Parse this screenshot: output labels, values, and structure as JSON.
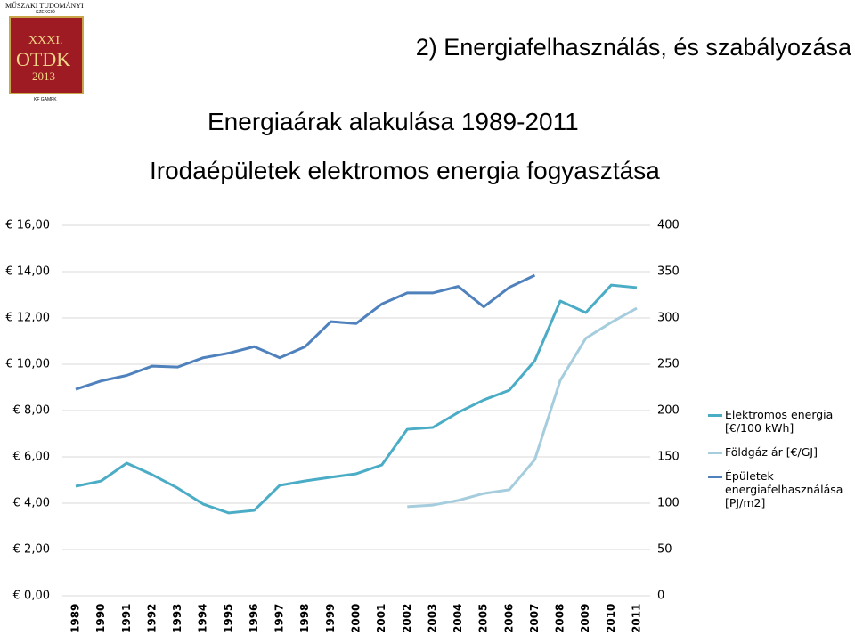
{
  "header": {
    "logo": {
      "top": "MŰSZAKI TUDOMÁNYI",
      "sub": "SZEKCIÓ",
      "number": "XXXI.",
      "name": "OTDK",
      "year": "2013",
      "bottom": "KF GAMFK"
    },
    "title": "2) Energiafelhasználás, és szabályozása",
    "subtitle": "Energiaárak alakulása 1989-2011",
    "subtitle2": "Irodaépületek elektromos energia fogyasztása"
  },
  "chart_data": {
    "type": "line",
    "categories": [
      "1989",
      "1990",
      "1991",
      "1992",
      "1993",
      "1994",
      "1995",
      "1996",
      "1997",
      "1998",
      "1999",
      "2000",
      "2001",
      "2002",
      "2003",
      "2004",
      "2005",
      "2006",
      "2007",
      "2008",
      "2009",
      "2010",
      "2011"
    ],
    "series": [
      {
        "name": "Elektromos energia [€/100 kWh]",
        "color": "#4bacc6",
        "values": [
          4.73,
          4.96,
          5.73,
          5.23,
          4.65,
          3.96,
          3.58,
          3.69,
          4.77,
          4.96,
          5.12,
          5.27,
          5.65,
          7.19,
          7.27,
          7.92,
          8.46,
          8.88,
          10.15,
          12.73,
          12.23,
          13.42,
          13.31
        ]
      },
      {
        "name": "Földgáz ár [€/GJ]",
        "color": "#a5cddd",
        "values": [
          null,
          null,
          null,
          null,
          null,
          null,
          null,
          null,
          null,
          null,
          null,
          null,
          null,
          3.85,
          3.92,
          4.12,
          4.42,
          4.58,
          5.88,
          9.31,
          11.12,
          11.81,
          12.42
        ]
      },
      {
        "name": "Épületek energiafelhasználása [PJ/m2]",
        "color": "#4f81bd",
        "axis": "y2",
        "values": [
          223,
          232,
          238,
          248,
          247,
          257,
          262,
          269,
          257,
          269,
          296,
          294,
          315,
          327,
          327,
          334,
          312,
          333,
          346,
          null,
          null,
          null,
          null
        ]
      }
    ],
    "ylim": [
      0,
      16
    ],
    "yticks": [
      {
        "value": 0,
        "label": "€ 0,00"
      },
      {
        "value": 2,
        "label": "€ 2,00"
      },
      {
        "value": 4,
        "label": "€ 4,00"
      },
      {
        "value": 6,
        "label": "€ 6,00"
      },
      {
        "value": 8,
        "label": "€ 8,00"
      },
      {
        "value": 10,
        "label": "€ 10,00"
      },
      {
        "value": 12,
        "label": "€ 12,00"
      },
      {
        "value": 14,
        "label": "€ 14,00"
      },
      {
        "value": 16,
        "label": "€ 16,00"
      }
    ],
    "y2lim": [
      0,
      400
    ],
    "y2ticks": [
      0,
      50,
      100,
      150,
      200,
      250,
      300,
      350,
      400
    ],
    "grid": true,
    "legend": "right"
  }
}
